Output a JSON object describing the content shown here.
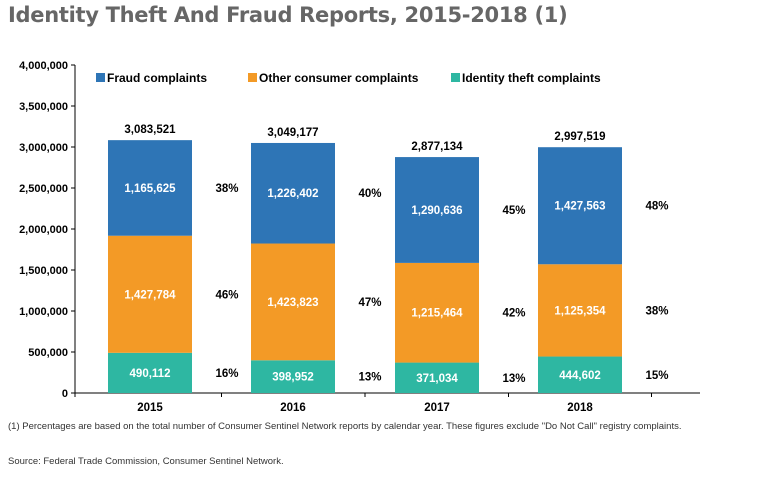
{
  "title": "Identity Theft And Fraud Reports, 2015-2018 (1)",
  "footnote": "(1) Percentages are based on the total number of Consumer Sentinel Network reports by calendar year. These figures exclude \"Do Not Call\" registry complaints.",
  "source": "Source: Federal Trade Commission, Consumer Sentinel Network.",
  "colors": {
    "fraud": "#2e75b6",
    "other": "#f39a26",
    "identity": "#2eb7a2"
  },
  "chart_data": {
    "type": "bar",
    "stacked": true,
    "categories": [
      "2015",
      "2016",
      "2017",
      "2018"
    ],
    "ylim": [
      0,
      4000000
    ],
    "yticks": [
      "0",
      "500,000",
      "1,000,000",
      "1,500,000",
      "2,000,000",
      "2,500,000",
      "3,000,000",
      "3,500,000",
      "4,000,000"
    ],
    "legend_position": "top",
    "grid": false,
    "series": [
      {
        "name": "Identity theft complaints",
        "key": "identity",
        "values": [
          490112,
          398952,
          371034,
          444602
        ],
        "labels": [
          "490,112",
          "398,952",
          "371,034",
          "444,602"
        ],
        "percent_labels": [
          "16%",
          "13%",
          "13%",
          "15%"
        ]
      },
      {
        "name": "Other consumer complaints",
        "key": "other",
        "values": [
          1427784,
          1423823,
          1215464,
          1125354
        ],
        "labels": [
          "1,427,784",
          "1,423,823",
          "1,215,464",
          "1,125,354"
        ],
        "percent_labels": [
          "46%",
          "47%",
          "42%",
          "38%"
        ]
      },
      {
        "name": "Fraud complaints",
        "key": "fraud",
        "values": [
          1165625,
          1226402,
          1290636,
          1427563
        ],
        "labels": [
          "1,165,625",
          "1,226,402",
          "1,290,636",
          "1,427,563"
        ],
        "percent_labels": [
          "38%",
          "40%",
          "45%",
          "48%"
        ]
      }
    ],
    "legend_order": [
      "fraud",
      "other",
      "identity"
    ],
    "totals": [
      3083521,
      3049177,
      2877134,
      2997519
    ],
    "total_labels": [
      "3,083,521",
      "3,049,177",
      "2,877,134",
      "2,997,519"
    ]
  }
}
